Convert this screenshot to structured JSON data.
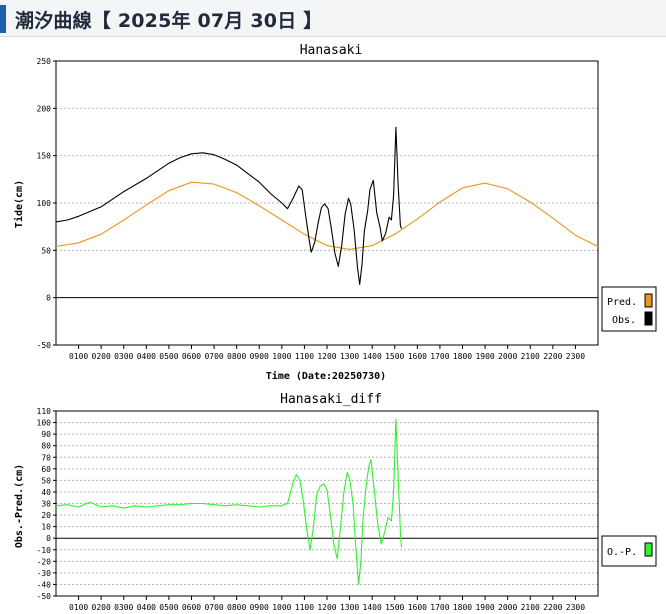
{
  "page": {
    "title": "潮汐曲線【 2025年 07月 30日 】"
  },
  "colors": {
    "pred": "#e8961e",
    "obs": "#000000",
    "diff": "#33ee33",
    "header_bar": "#1d5fa8"
  },
  "hour_labels": [
    "0100",
    "0200",
    "0300",
    "0400",
    "0500",
    "0600",
    "0700",
    "0800",
    "0900",
    "1000",
    "1100",
    "1200",
    "1300",
    "1400",
    "1500",
    "1600",
    "1700",
    "1800",
    "1900",
    "2000",
    "2100",
    "2200",
    "2300"
  ],
  "chart_data": [
    {
      "type": "line",
      "title": "Hanasaki",
      "xlabel": "Time (Date:20250730)",
      "ylabel": "Tide(cm)",
      "xlim": [
        0,
        24
      ],
      "ylim": [
        -50,
        250
      ],
      "yticks": [
        -50,
        0,
        50,
        100,
        150,
        200,
        250
      ],
      "grid": true,
      "legend": "right",
      "series": [
        {
          "name": "Pred.",
          "color": "#e8961e",
          "points": [
            [
              0,
              54
            ],
            [
              1,
              58
            ],
            [
              2,
              67
            ],
            [
              3,
              82
            ],
            [
              4,
              98
            ],
            [
              5,
              113
            ],
            [
              6,
              122
            ],
            [
              7,
              120
            ],
            [
              8,
              111
            ],
            [
              9,
              97
            ],
            [
              10,
              82
            ],
            [
              11,
              67
            ],
            [
              12,
              55
            ],
            [
              13,
              51
            ],
            [
              14,
              55
            ],
            [
              15,
              67
            ],
            [
              16,
              83
            ],
            [
              17,
              101
            ],
            [
              18,
              116
            ],
            [
              19,
              121
            ],
            [
              20,
              115
            ],
            [
              21,
              101
            ],
            [
              22,
              84
            ],
            [
              23,
              66
            ],
            [
              24,
              54
            ]
          ]
        },
        {
          "name": "Obs.",
          "color": "#000000",
          "points": [
            [
              0,
              80
            ],
            [
              0.5,
              82
            ],
            [
              1,
              86
            ],
            [
              1.5,
              91
            ],
            [
              2,
              96
            ],
            [
              2.5,
              104
            ],
            [
              3,
              112
            ],
            [
              3.5,
              119
            ],
            [
              4,
              126
            ],
            [
              4.5,
              134
            ],
            [
              5,
              142
            ],
            [
              5.5,
              148
            ],
            [
              6,
              152
            ],
            [
              6.5,
              153
            ],
            [
              7,
              151
            ],
            [
              7.5,
              146
            ],
            [
              8,
              140
            ],
            [
              8.5,
              131
            ],
            [
              9,
              122
            ],
            [
              9.5,
              110
            ],
            [
              10,
              100
            ],
            [
              10.25,
              94
            ],
            [
              10.5,
              105
            ],
            [
              10.75,
              118
            ],
            [
              10.9,
              114
            ],
            [
              11.05,
              88
            ],
            [
              11.2,
              63
            ],
            [
              11.3,
              48
            ],
            [
              11.45,
              58
            ],
            [
              11.6,
              78
            ],
            [
              11.75,
              95
            ],
            [
              11.9,
              99
            ],
            [
              12.05,
              94
            ],
            [
              12.2,
              72
            ],
            [
              12.35,
              47
            ],
            [
              12.5,
              33
            ],
            [
              12.65,
              55
            ],
            [
              12.8,
              88
            ],
            [
              12.95,
              105
            ],
            [
              13.05,
              99
            ],
            [
              13.2,
              72
            ],
            [
              13.35,
              32
            ],
            [
              13.45,
              14
            ],
            [
              13.55,
              35
            ],
            [
              13.65,
              70
            ],
            [
              13.8,
              92
            ],
            [
              13.9,
              114
            ],
            [
              14.05,
              124
            ],
            [
              14.2,
              90
            ],
            [
              14.35,
              74
            ],
            [
              14.45,
              60
            ],
            [
              14.6,
              68
            ],
            [
              14.75,
              85
            ],
            [
              14.85,
              82
            ],
            [
              14.95,
              108
            ],
            [
              15.05,
              180
            ],
            [
              15.15,
              120
            ],
            [
              15.25,
              76
            ],
            [
              15.3,
              73
            ]
          ]
        }
      ]
    },
    {
      "type": "line",
      "title": "Hanasaki_diff",
      "xlabel": "",
      "ylabel": "Obs.-Pred.(cm)",
      "xlim": [
        0,
        24
      ],
      "ylim": [
        -50,
        110
      ],
      "yticks": [
        -50,
        -40,
        -30,
        -20,
        -10,
        0,
        10,
        20,
        30,
        40,
        50,
        60,
        70,
        80,
        90,
        100,
        110
      ],
      "grid": true,
      "legend": "right",
      "series": [
        {
          "name": "O.-P.",
          "color": "#33ee33",
          "points": [
            [
              0,
              28
            ],
            [
              0.5,
              29
            ],
            [
              1,
              27
            ],
            [
              1.5,
              31
            ],
            [
              2,
              27
            ],
            [
              2.5,
              28
            ],
            [
              3,
              26
            ],
            [
              3.5,
              28
            ],
            [
              4,
              27
            ],
            [
              4.5,
              28
            ],
            [
              5,
              29
            ],
            [
              5.5,
              29
            ],
            [
              6,
              30
            ],
            [
              6.5,
              30
            ],
            [
              7,
              29
            ],
            [
              7.5,
              28
            ],
            [
              8,
              29
            ],
            [
              8.5,
              28
            ],
            [
              9,
              27
            ],
            [
              9.5,
              28
            ],
            [
              10,
              28
            ],
            [
              10.25,
              30
            ],
            [
              10.5,
              48
            ],
            [
              10.65,
              55
            ],
            [
              10.8,
              50
            ],
            [
              10.95,
              32
            ],
            [
              11.1,
              8
            ],
            [
              11.25,
              -10
            ],
            [
              11.4,
              10
            ],
            [
              11.55,
              38
            ],
            [
              11.7,
              45
            ],
            [
              11.85,
              47
            ],
            [
              12.0,
              42
            ],
            [
              12.15,
              20
            ],
            [
              12.3,
              -5
            ],
            [
              12.45,
              -18
            ],
            [
              12.6,
              10
            ],
            [
              12.75,
              40
            ],
            [
              12.9,
              57
            ],
            [
              13.0,
              52
            ],
            [
              13.15,
              30
            ],
            [
              13.3,
              -15
            ],
            [
              13.4,
              -40
            ],
            [
              13.5,
              -20
            ],
            [
              13.6,
              18
            ],
            [
              13.75,
              48
            ],
            [
              13.85,
              62
            ],
            [
              13.95,
              68
            ],
            [
              14.1,
              40
            ],
            [
              14.25,
              12
            ],
            [
              14.4,
              -5
            ],
            [
              14.55,
              5
            ],
            [
              14.7,
              18
            ],
            [
              14.85,
              15
            ],
            [
              14.95,
              40
            ],
            [
              15.05,
              103
            ],
            [
              15.15,
              55
            ],
            [
              15.25,
              5
            ],
            [
              15.3,
              -8
            ]
          ]
        }
      ]
    }
  ]
}
